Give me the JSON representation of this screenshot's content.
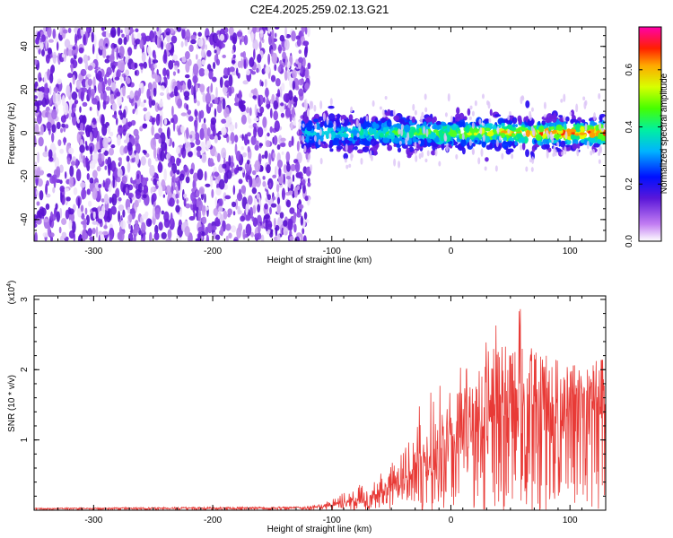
{
  "title": "C2E4.2025.259.02.13.G21",
  "colors": {
    "spectrum_background": "#7b2cf0",
    "snr_line": "#e83a36",
    "axis": "#000000"
  },
  "chart_data": [
    {
      "type": "heatmap",
      "name": "spectrogram",
      "title": "C2E4.2025.259.02.13.G21",
      "xlabel": "Height of straight line (km)",
      "ylabel": "Frequency (Hz)",
      "xlim": [
        -350,
        130
      ],
      "ylim": [
        -50,
        49
      ],
      "xticks": [
        -300,
        -200,
        -100,
        0,
        100
      ],
      "xtick_labels": [
        "-300",
        "-200",
        "-100",
        "0",
        "100"
      ],
      "yticks": [
        -40,
        -20,
        0,
        20,
        40
      ],
      "ytick_labels": [
        "-40",
        "-20",
        "0",
        "20",
        "40"
      ],
      "description": "Broadband noise at all frequencies for heights below about -125 km; a narrow band near 0 Hz (about -8 to +8 Hz) from -125 km to 130 km",
      "noise_region_x": [
        -350,
        -125
      ],
      "signal_band_x": [
        -125,
        130
      ],
      "signal_band_y": [
        -8,
        8
      ],
      "colorbar": {
        "label": "Normalized spectral amplitude",
        "range": [
          0.0,
          0.75
        ],
        "ticks": [
          0.0,
          0.2,
          0.4,
          0.6
        ],
        "tick_labels": [
          "0.0",
          "0.2",
          "0.4",
          "0.6"
        ]
      }
    },
    {
      "type": "line",
      "name": "snr",
      "xlabel": "Height of straight line (km)",
      "ylabel": "SNR (10 * v/v)",
      "scale_label": "(x10",
      "scale_exponent": "4",
      "scale_close": ")",
      "xlim": [
        -350,
        130
      ],
      "ylim": [
        0,
        3.05
      ],
      "xticks": [
        -300,
        -200,
        -100,
        0,
        100
      ],
      "xtick_labels": [
        "-300",
        "-200",
        "-100",
        "0",
        "100"
      ],
      "yticks": [
        1,
        2,
        3
      ],
      "ytick_labels": [
        "1",
        "2",
        "3"
      ],
      "envelope": {
        "x": [
          -350,
          -120,
          -100,
          -80,
          -60,
          -40,
          -20,
          0,
          20,
          40,
          60,
          80,
          100,
          130
        ],
        "max": [
          0.03,
          0.05,
          0.15,
          0.35,
          0.55,
          0.85,
          1.8,
          1.9,
          2.3,
          2.7,
          2.9,
          2.2,
          2.05,
          2.15
        ],
        "mean": [
          0.02,
          0.03,
          0.06,
          0.12,
          0.22,
          0.35,
          0.6,
          0.9,
          1.05,
          1.2,
          1.3,
          1.3,
          1.25,
          1.35
        ]
      }
    }
  ]
}
